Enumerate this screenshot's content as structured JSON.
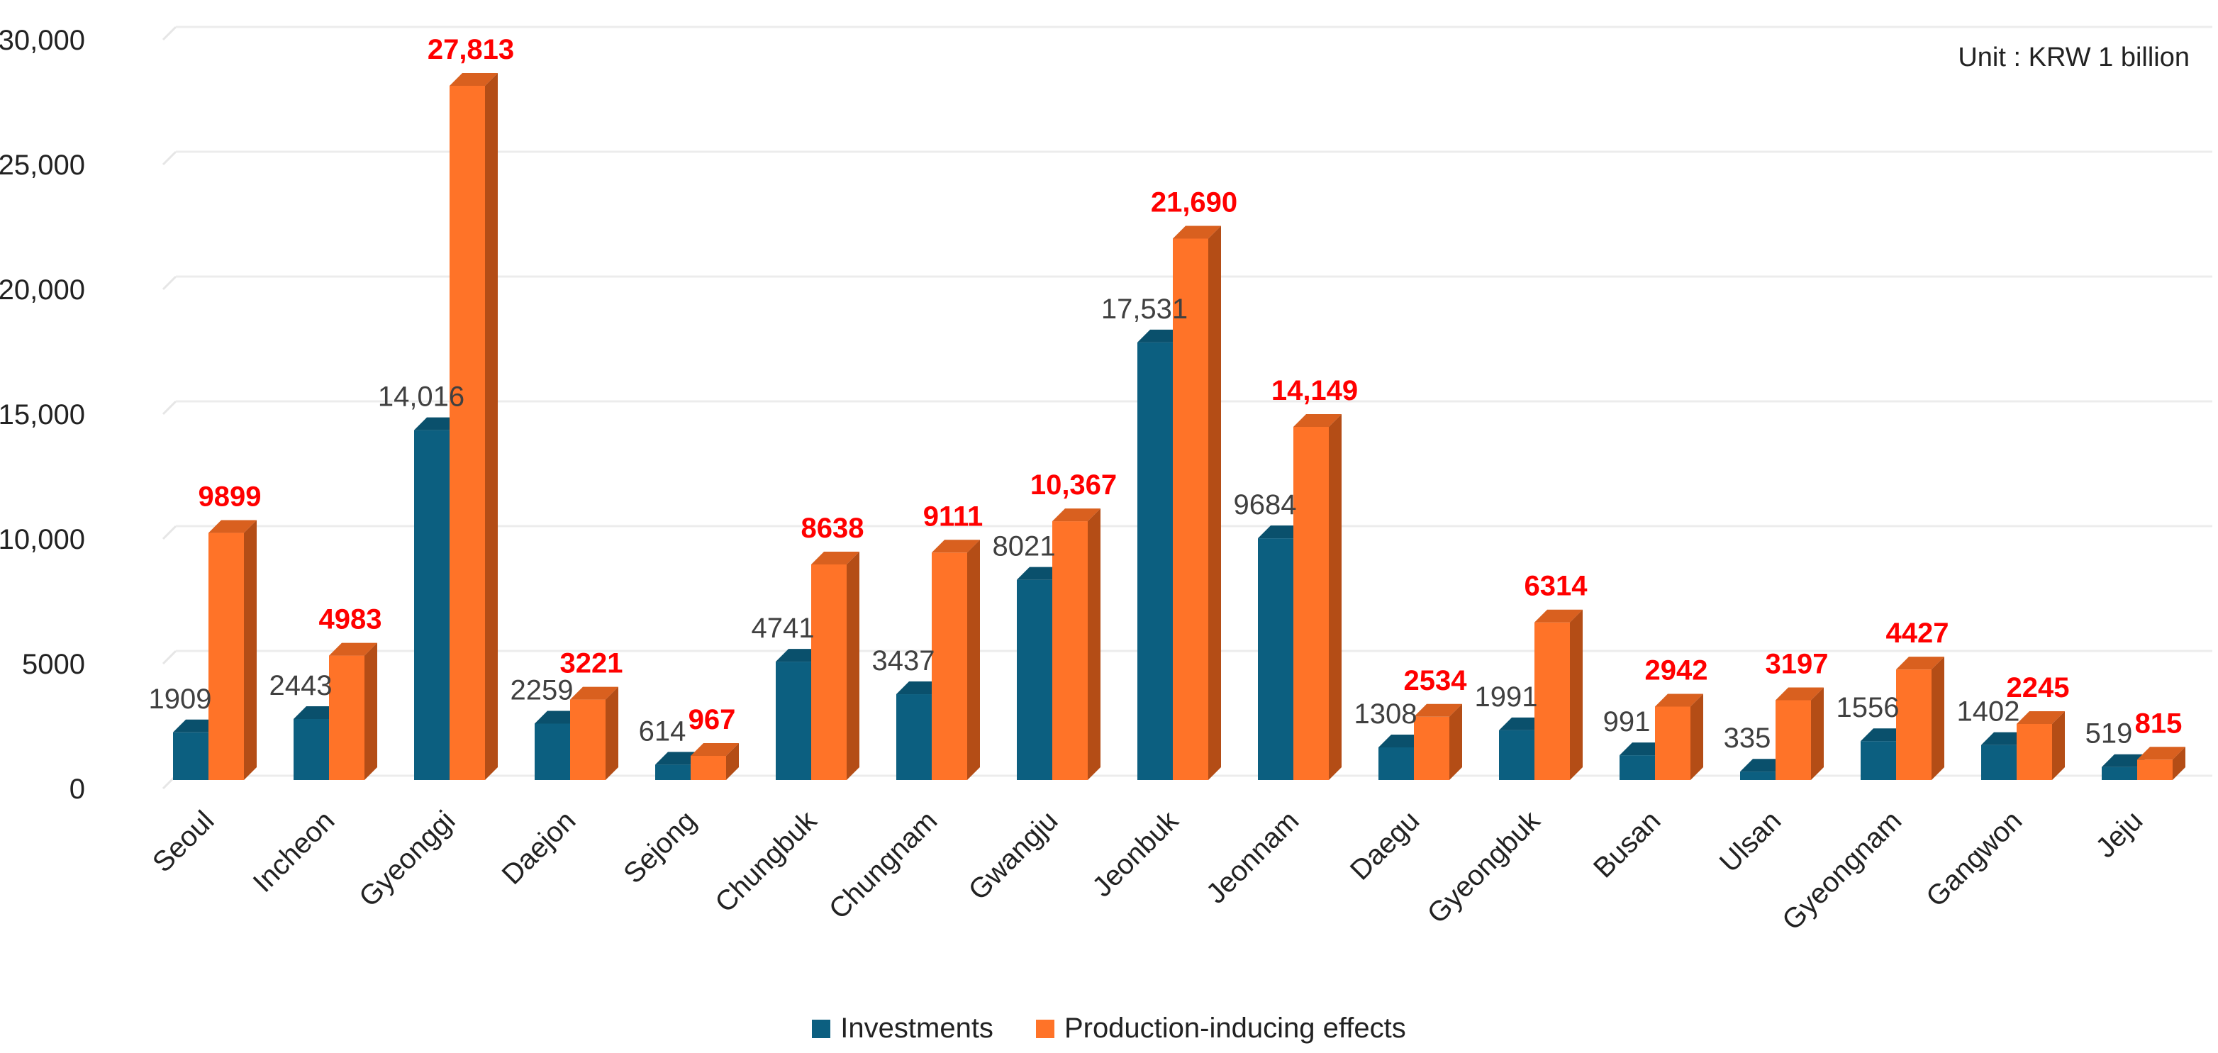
{
  "chart_data": {
    "type": "bar",
    "title": "",
    "unit_label": "Unit : KRW 1 billion",
    "xlabel": "",
    "ylabel": "",
    "ylim": [
      0,
      30000
    ],
    "yticks": [
      0,
      5000,
      10000,
      15000,
      20000,
      25000,
      30000
    ],
    "ytick_labels": [
      "0",
      "5000",
      "10,000",
      "15,000",
      "20,000",
      "25,000",
      "30,000"
    ],
    "grid": true,
    "legend_position": "bottom",
    "categories": [
      "Seoul",
      "Incheon",
      "Gyeonggi",
      "Daejon",
      "Sejong",
      "Chungbuk",
      "Chungnam",
      "Gwangju",
      "Jeonbuk",
      "Jeonnam",
      "Daegu",
      "Gyeongbuk",
      "Busan",
      "Ulsan",
      "Gyeongnam",
      "Gangwon",
      "Jeju"
    ],
    "series": [
      {
        "name": "Investments",
        "color": "#0c5f80",
        "side": "#07445c",
        "top": "#0a506c",
        "label_color": "#404040",
        "values": [
          1909,
          2443,
          14016,
          2259,
          614,
          4741,
          3437,
          8021,
          17531,
          9684,
          1308,
          1991,
          991,
          335,
          1556,
          1402,
          519
        ],
        "labels": [
          "1909",
          "2443",
          "14,016",
          "2259",
          "614",
          "4741",
          "3437",
          "8021",
          "17,531",
          "9684",
          "1308",
          "1991",
          "991",
          "335",
          "1556",
          "1402",
          "519"
        ]
      },
      {
        "name": "Production-inducing effects",
        "color": "#ff7328",
        "side": "#b44d16",
        "top": "#d9601f",
        "label_color": "#ff0000",
        "values": [
          9899,
          4983,
          27813,
          3221,
          967,
          8638,
          9111,
          10367,
          21690,
          14149,
          2534,
          6314,
          2942,
          3197,
          4427,
          2245,
          815
        ],
        "labels": [
          "9899",
          "4983",
          "27,813",
          "3221",
          "967",
          "8638",
          "9111",
          "10,367",
          "21,690",
          "14,149",
          "2534",
          "6314",
          "2942",
          "3197",
          "4427",
          "2245",
          "815"
        ]
      }
    ]
  }
}
